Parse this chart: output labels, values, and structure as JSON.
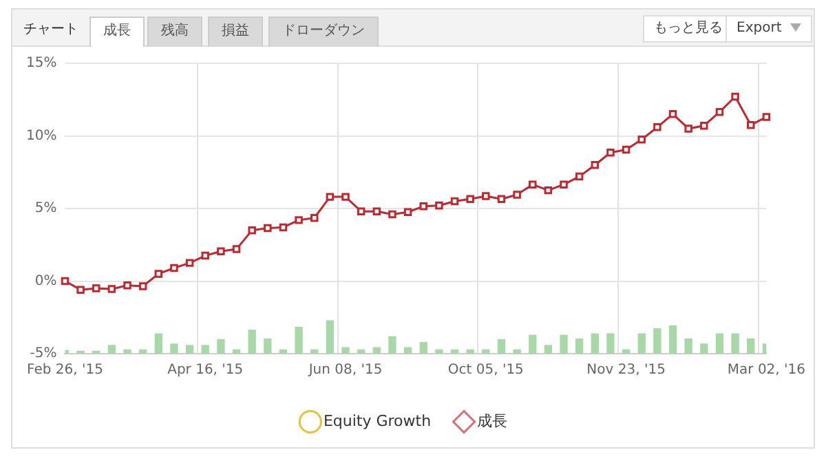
{
  "chart_data": {
    "type": "line",
    "annotations": [
      "チャート",
      "成長",
      "残高",
      "損益",
      "ドローダウン",
      "もっと見る",
      "Export"
    ],
    "categories": [
      "Feb 26, '15",
      null,
      null,
      null,
      null,
      null,
      null,
      null,
      null,
      "Apr 16, '15",
      null,
      null,
      null,
      null,
      null,
      null,
      null,
      null,
      "Jun 08, '15",
      null,
      null,
      null,
      null,
      null,
      null,
      null,
      null,
      "Oct 05, '15",
      null,
      null,
      null,
      null,
      null,
      null,
      null,
      null,
      "Nov 23, '15",
      null,
      null,
      null,
      null,
      null,
      null,
      null,
      null,
      "Mar 02, '16"
    ],
    "series": [
      {
        "name": "Equity Growth",
        "color": "#e8c23a",
        "marker": "circle",
        "values": [
          null,
          null,
          null,
          null,
          null,
          null,
          null,
          null,
          null,
          null,
          null,
          null,
          null,
          null,
          null,
          null,
          null,
          null,
          null,
          null,
          null,
          null,
          null,
          null,
          null,
          null,
          null,
          null,
          null,
          null,
          null,
          null,
          null,
          null,
          null,
          null,
          null,
          null,
          null,
          null,
          null,
          null,
          null,
          null,
          null,
          null
        ]
      },
      {
        "name": "成長",
        "color": "#d9707a",
        "marker": "diamond",
        "values": [
          null,
          null,
          null,
          null,
          null,
          null,
          null,
          null,
          null,
          null,
          null,
          null,
          null,
          null,
          null,
          null,
          null,
          null,
          null,
          null,
          null,
          null,
          null,
          null,
          null,
          null,
          null,
          null,
          null,
          null,
          null,
          null,
          null,
          null,
          null,
          null,
          null,
          null,
          null,
          null,
          null,
          null,
          null,
          null,
          null,
          null
        ]
      },
      {
        "color": "#c0282f",
        "marker": "square",
        "values": [
          0,
          -0.6,
          -0.5,
          -0.55,
          -0.3,
          -0.35,
          0.5,
          0.9,
          1.25,
          1.75,
          2.05,
          2.2,
          3.5,
          3.65,
          3.7,
          4.2,
          4.35,
          5.8,
          5.8,
          4.8,
          4.8,
          4.6,
          4.75,
          5.15,
          5.2,
          5.5,
          5.65,
          5.85,
          5.65,
          5.95,
          6.65,
          6.25,
          6.65,
          7.2,
          8.0,
          8.85,
          9.05,
          9.75,
          10.6,
          11.5,
          10.5,
          10.7,
          11.65,
          12.7,
          10.75,
          11.3
        ]
      },
      {
        "type": "bar",
        "color": "#a8d8a8",
        "base": [
          -5,
          -5,
          -5,
          -5,
          -5,
          -5,
          -5,
          -5,
          -5,
          -5,
          -5,
          -5,
          -5,
          -5,
          -5,
          -5,
          -5,
          -5,
          -5,
          -5,
          -5,
          -5,
          -5,
          -5,
          -5,
          -5,
          -5,
          -5,
          -5,
          -5,
          -5,
          -5,
          -5,
          -5,
          -5,
          -5,
          -5,
          -5,
          -5,
          -5,
          -5,
          -5,
          -5,
          -5,
          -5,
          -5
        ],
        "values": [
          0.25,
          0.2,
          0.2,
          0.6,
          0.3,
          0.3,
          1.4,
          0.7,
          0.6,
          0.6,
          1.0,
          0.3,
          1.65,
          1.05,
          0.3,
          1.85,
          0.3,
          2.3,
          0.45,
          0.3,
          0.45,
          1.2,
          0.45,
          0.8,
          0.3,
          0.3,
          0.3,
          0.3,
          1.0,
          0.3,
          1.3,
          0.6,
          1.3,
          1.05,
          1.4,
          1.4,
          0.3,
          1.4,
          1.75,
          1.95,
          1.05,
          0.7,
          1.4,
          1.4,
          1.05,
          0.7
        ]
      }
    ],
    "ylim": [
      -5,
      15
    ],
    "yticks": [
      {
        "value": -5,
        "label": "-5%"
      },
      {
        "value": 0,
        "label": "0%"
      },
      {
        "value": 5,
        "label": "5%"
      },
      {
        "value": 10,
        "label": "10%"
      },
      {
        "value": 15,
        "label": "15%"
      }
    ],
    "grid": true,
    "legend": "bottom"
  }
}
